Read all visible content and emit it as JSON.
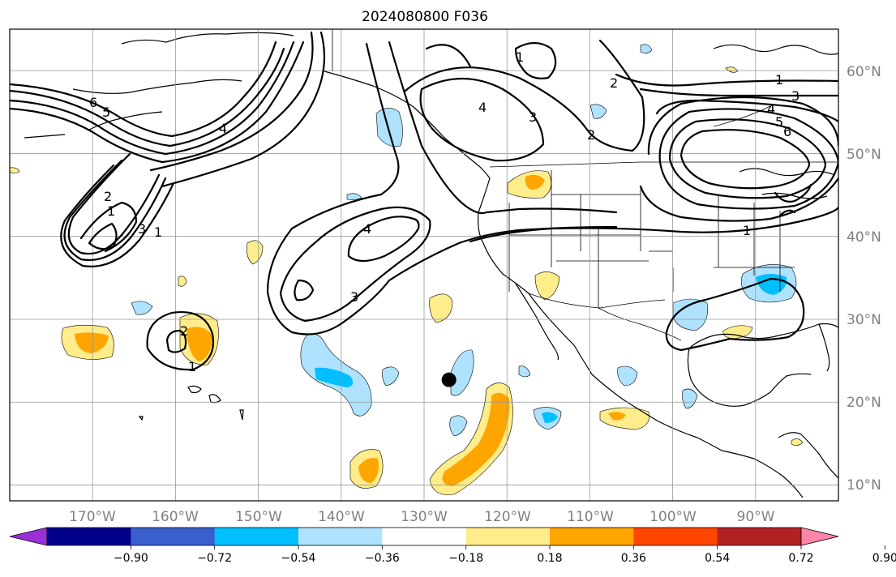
{
  "title": "2024080800 F036",
  "map": {
    "lat_labels": [
      "60°N",
      "50°N",
      "40°N",
      "30°N",
      "20°N",
      "10°N"
    ],
    "lon_labels": [
      "170°W",
      "160°W",
      "150°W",
      "140°W",
      "130°W",
      "120°W",
      "110°W",
      "100°W",
      "90°W"
    ],
    "grid": true,
    "contour_labels": [
      "6",
      "5",
      "4",
      "1",
      "4",
      "3",
      "2",
      "2",
      "1",
      "3",
      "4",
      "5",
      "6",
      "1",
      "4",
      "3",
      "2",
      "1",
      "3",
      "1",
      "2",
      "1"
    ],
    "marker": {
      "lon": -127,
      "lat": 22.7
    }
  },
  "colorbar": {
    "colors": [
      "#9b30d9",
      "#00008b",
      "#3a5fcd",
      "#00bfff",
      "#aee2ff",
      "#ffffff",
      "#ffec8b",
      "#ffa500",
      "#ff4500",
      "#b22222",
      "#ff85a8"
    ],
    "tick_labels": [
      "−0.90",
      "−0.72",
      "−0.54",
      "−0.36",
      "−0.18",
      "0.18",
      "0.36",
      "0.54",
      "0.72",
      "0.90"
    ],
    "extend": "both"
  },
  "colors": {
    "fill_pos_low": "#ffec8b",
    "fill_pos_mid": "#ffa500",
    "fill_neg_low": "#aee2ff",
    "fill_neg_mid": "#00bfff",
    "grid": "#999999",
    "label": "#808080"
  }
}
